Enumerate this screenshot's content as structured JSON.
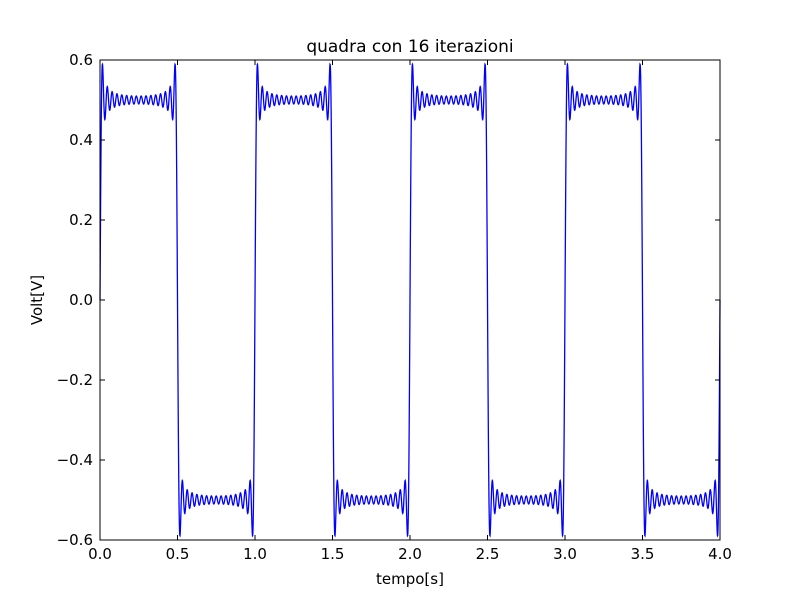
{
  "chart_data": {
    "type": "line",
    "title": "quadra con 16 iterazioni",
    "xlabel": "tempo[s]",
    "ylabel": "Volt[V]",
    "xlim": [
      0.0,
      4.0
    ],
    "ylim": [
      -0.6,
      0.6
    ],
    "x_ticks": [
      "0.0",
      "0.5",
      "1.0",
      "1.5",
      "2.0",
      "2.5",
      "3.0",
      "3.5",
      "4.0"
    ],
    "y_ticks": [
      "−0.6",
      "−0.4",
      "−0.2",
      "0.0",
      "0.2",
      "0.4",
      "0.6"
    ],
    "grid": false,
    "series": [
      {
        "color": "#0000ff",
        "function": "square wave Fourier partial sum (odd harmonics, 16 terms)",
        "amplitude": 0.5,
        "period": 1.0,
        "harmonics": 16,
        "x_range": [
          0.0,
          4.0
        ],
        "samples": 4000
      }
    ]
  }
}
